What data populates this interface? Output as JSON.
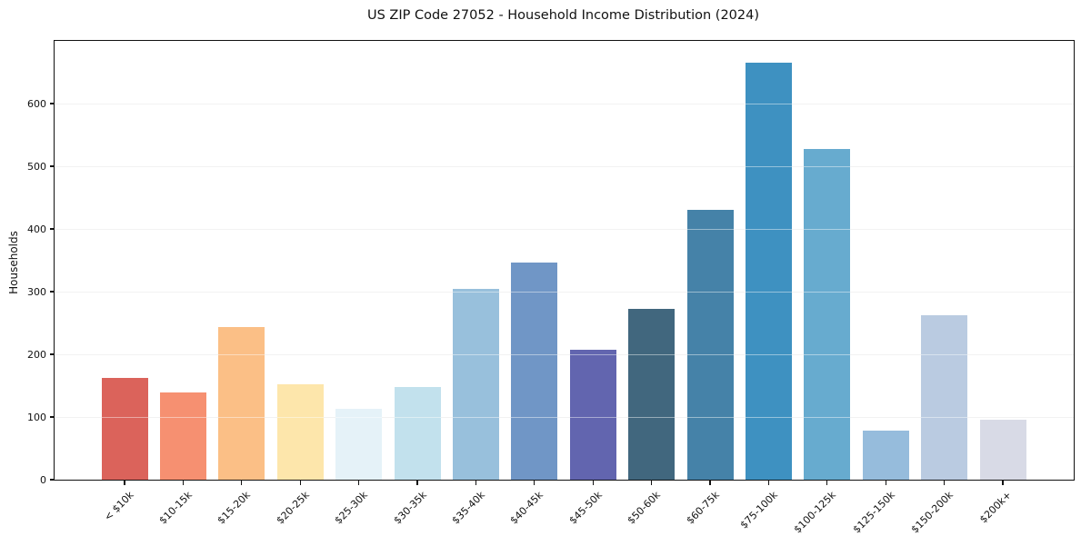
{
  "chart_data": {
    "type": "bar",
    "title": "US ZIP Code 27052 - Household Income Distribution (2024)",
    "xlabel": "",
    "ylabel": "Households",
    "categories": [
      "< $10k",
      "$10-15k",
      "$15-20k",
      "$20-25k",
      "$25-30k",
      "$30-35k",
      "$35-40k",
      "$40-45k",
      "$45-50k",
      "$50-60k",
      "$60-75k",
      "$75-100k",
      "$100-125k",
      "$125-150k",
      "$150-200k",
      "$200k+"
    ],
    "values": [
      163,
      139,
      244,
      152,
      113,
      148,
      305,
      347,
      207,
      273,
      430,
      665,
      527,
      78,
      262,
      96
    ],
    "bar_colors": [
      "#d95b52",
      "#f58a69",
      "#fbbc80",
      "#fde5a6",
      "#e4f1f8",
      "#bfdfec",
      "#92bdda",
      "#6890c3",
      "#5a5dab",
      "#375f77",
      "#3b7ba3",
      "#348bbe",
      "#5fa7cc",
      "#90b8da",
      "#b6c8df",
      "#d6d8e5"
    ],
    "ylim": [
      0,
      700
    ],
    "yticks": [
      0,
      100,
      200,
      300,
      400,
      500,
      600
    ],
    "grid": "horizontal",
    "x_tick_rotation_deg": 45,
    "legend": "none",
    "style_colors": {
      "grid": "#e7e7e7",
      "spine": "#111111",
      "text": "#111111",
      "background": "#ffffff"
    }
  }
}
